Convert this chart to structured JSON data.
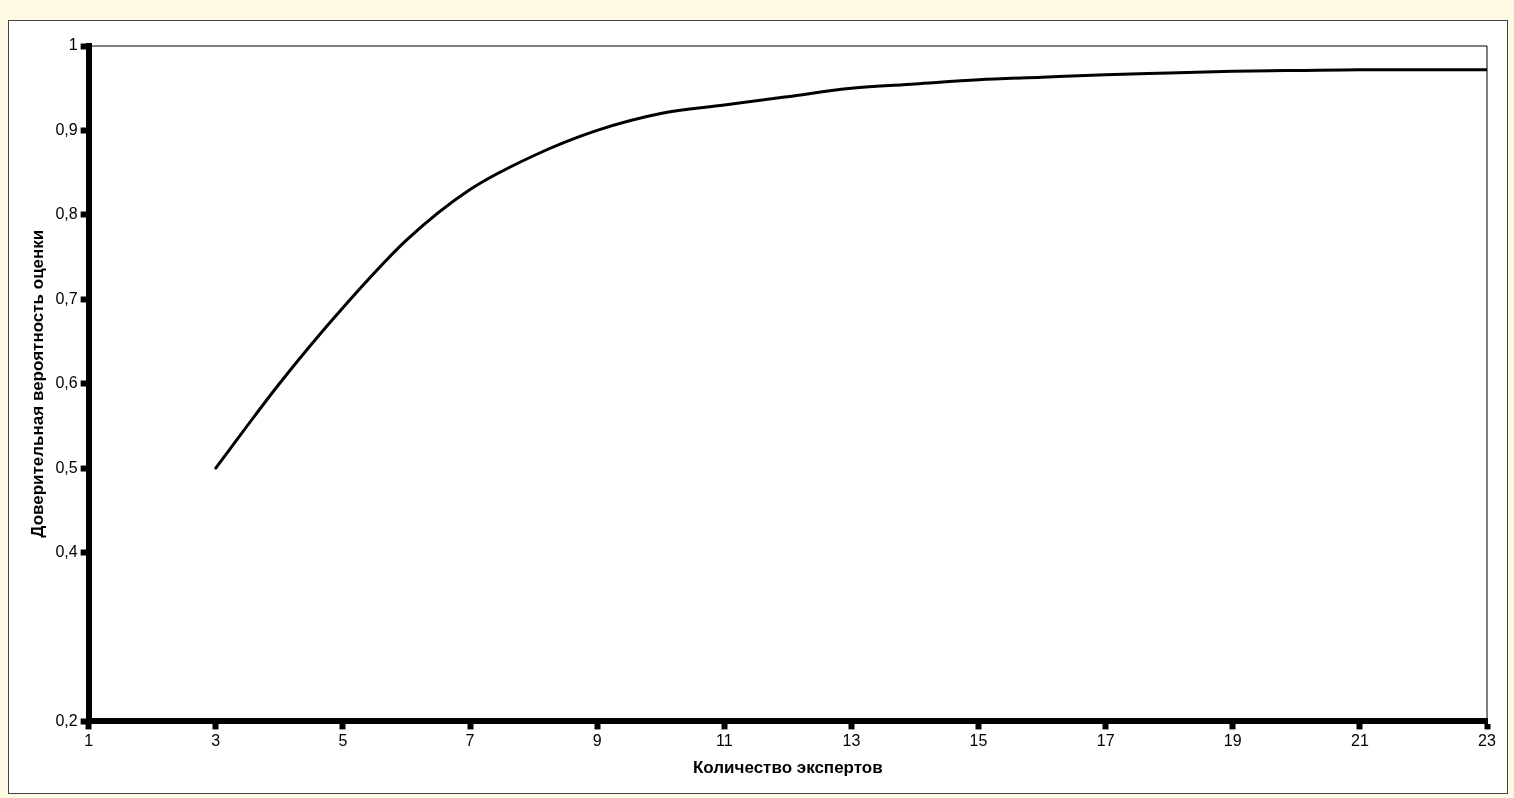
{
  "chart_data": {
    "type": "line",
    "xlabel": "Количество экспертов",
    "ylabel": "Доверительная вероятность оценки",
    "x": [
      3,
      4,
      5,
      6,
      7,
      8,
      9,
      10,
      11,
      12,
      13,
      14,
      15,
      16,
      17,
      18,
      19,
      20,
      21,
      22,
      23
    ],
    "series": [
      {
        "color": "#000000",
        "values": [
          0.5,
          0.6,
          0.69,
          0.77,
          0.83,
          0.87,
          0.9,
          0.92,
          0.93,
          0.94,
          0.95,
          0.955,
          0.96,
          0.963,
          0.966,
          0.968,
          0.97,
          0.971,
          0.972,
          0.972,
          0.972
        ]
      }
    ],
    "xlim": [
      1,
      23
    ],
    "xticks": [
      1,
      3,
      5,
      7,
      9,
      11,
      13,
      15,
      17,
      19,
      21,
      23
    ],
    "ylim": [
      0.2,
      1
    ],
    "yticks": [
      {
        "value": 0.2,
        "label": "0,2"
      },
      {
        "value": 0.4,
        "label": "0,4"
      },
      {
        "value": 0.5,
        "label": "0,5"
      },
      {
        "value": 0.6,
        "label": "0,6"
      },
      {
        "value": 0.7,
        "label": "0,7"
      },
      {
        "value": 0.8,
        "label": "0,8"
      },
      {
        "value": 0.9,
        "label": "0,9"
      },
      {
        "value": 1,
        "label": "1"
      }
    ],
    "grid": false,
    "legend": false,
    "marker": "none",
    "line_style": "solid"
  }
}
